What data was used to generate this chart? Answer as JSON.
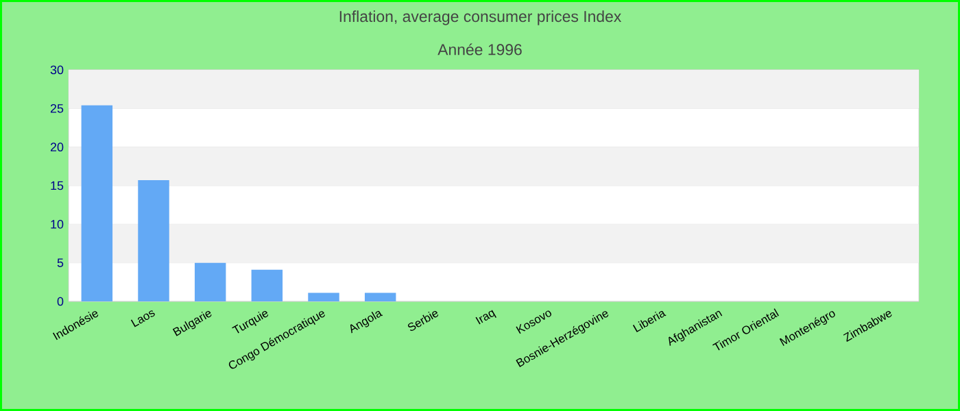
{
  "chart_data": {
    "type": "bar",
    "title": "Inflation, average consumer prices  Index",
    "subtitle": "Année 1996",
    "categories": [
      "Indonésie",
      "Laos",
      "Bulgarie",
      "Turquie",
      "Congo Démocratique",
      "Angola",
      "Serbie",
      "Iraq",
      "Kosovo",
      "Bosnie-Herzégovine",
      "Liberia",
      "Afghanistan",
      "Timor Oriental",
      "Montenégro",
      "Zimbabwe"
    ],
    "values": [
      25.4,
      15.7,
      5.0,
      4.1,
      1.1,
      1.1,
      null,
      null,
      null,
      null,
      null,
      null,
      null,
      null,
      null
    ],
    "color": "#63a9f5",
    "ylim": [
      0,
      30
    ],
    "yticks": [
      0,
      5,
      10,
      15,
      20,
      25,
      30
    ],
    "grid": "y"
  }
}
